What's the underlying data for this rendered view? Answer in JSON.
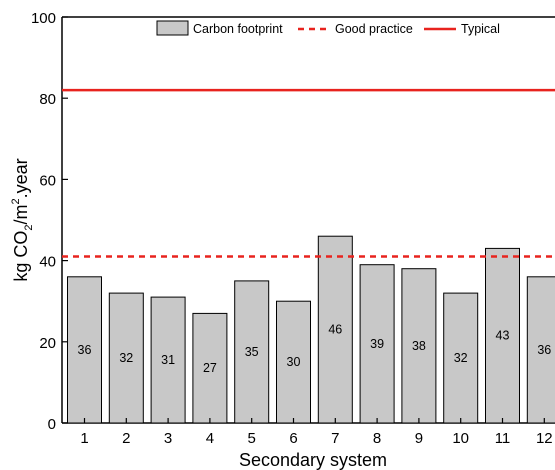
{
  "chart_data": {
    "type": "bar",
    "title": "",
    "xlabel": "Secondary system",
    "ylabel": {
      "main": "kg CO",
      "sub": "2",
      "mid": "/m",
      "sup": "2",
      "end": ".year"
    },
    "ylim": [
      0,
      100
    ],
    "yticks": [
      "0",
      "20",
      "40",
      "60",
      "80",
      "100"
    ],
    "categories": [
      "1",
      "2",
      "3",
      "4",
      "5",
      "6",
      "7",
      "8",
      "9",
      "10",
      "11",
      "12"
    ],
    "series": [
      {
        "name": "Carbon footprint",
        "values": [
          36,
          32,
          31,
          27,
          35,
          30,
          46,
          39,
          38,
          32,
          43,
          36
        ],
        "data_labels": [
          "36",
          "32",
          "31",
          "27",
          "35",
          "30",
          "46",
          "39",
          "38",
          "32",
          "43",
          "36"
        ],
        "color": "#c8c8c8"
      }
    ],
    "reference_lines": [
      {
        "name": "Good practice",
        "value": 41,
        "style": "dashed",
        "color": "#e8231e"
      },
      {
        "name": "Typical",
        "value": 82,
        "style": "solid",
        "color": "#e8231e"
      }
    ],
    "legend": {
      "placement": "top",
      "items": [
        "Carbon footprint",
        "Good practice",
        "Typical"
      ]
    },
    "grid": false
  }
}
